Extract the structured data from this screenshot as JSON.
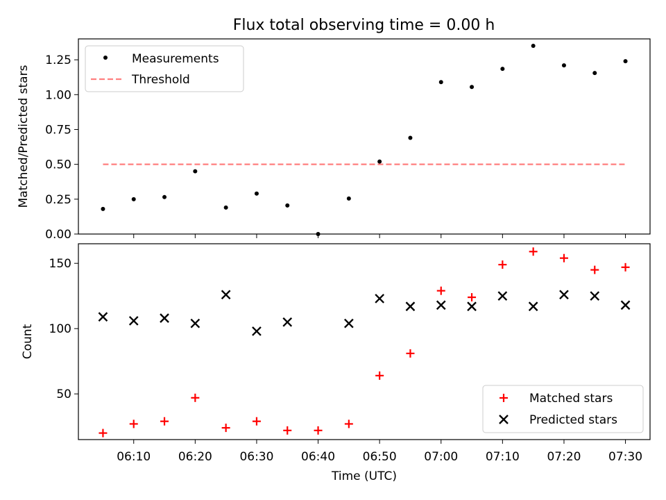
{
  "title": "Flux total observing time = 0.00 h",
  "chart_data": [
    {
      "type": "scatter",
      "ylabel": "Matched/Predicted stars",
      "ylim": [
        0,
        1.4
      ],
      "yticks": [
        0.0,
        0.25,
        0.5,
        0.75,
        1.0,
        1.25
      ],
      "ytick_labels": [
        "0.00",
        "0.25",
        "0.50",
        "0.75",
        "1.00",
        "1.25"
      ],
      "legend_position": "top-left",
      "threshold": {
        "name": "Threshold",
        "value": 0.5,
        "color": "#ff7f7f"
      },
      "series": [
        {
          "name": "Measurements",
          "color": "#000000",
          "x": [
            "06:05",
            "06:10",
            "06:15",
            "06:20",
            "06:25",
            "06:30",
            "06:35",
            "06:40",
            "06:45",
            "06:50",
            "06:55",
            "07:00",
            "07:05",
            "07:10",
            "07:15",
            "07:20",
            "07:25",
            "07:30"
          ],
          "y": [
            0.18,
            0.25,
            0.265,
            0.45,
            0.19,
            0.29,
            0.205,
            0.0,
            0.255,
            0.52,
            0.69,
            1.09,
            1.055,
            1.185,
            1.35,
            1.21,
            1.155,
            1.24
          ]
        }
      ]
    },
    {
      "type": "scatter",
      "xlabel": "Time (UTC)",
      "ylabel": "Count",
      "ylim": [
        15,
        165
      ],
      "yticks": [
        50,
        100,
        150
      ],
      "ytick_labels": [
        "50",
        "100",
        "150"
      ],
      "legend_position": "bottom-right",
      "series": [
        {
          "name": "Matched stars",
          "marker": "+",
          "color": "#ff0000",
          "x": [
            "06:05",
            "06:10",
            "06:15",
            "06:20",
            "06:25",
            "06:30",
            "06:35",
            "06:40",
            "06:45",
            "06:50",
            "06:55",
            "07:00",
            "07:05",
            "07:10",
            "07:15",
            "07:20",
            "07:25",
            "07:30"
          ],
          "y": [
            20,
            27,
            29,
            47,
            24,
            29,
            22,
            22,
            27,
            64,
            81,
            129,
            124,
            149,
            159,
            154,
            145,
            147
          ]
        },
        {
          "name": "Predicted stars",
          "marker": "x",
          "color": "#000000",
          "x": [
            "06:05",
            "06:10",
            "06:15",
            "06:20",
            "06:25",
            "06:30",
            "06:35",
            "06:40",
            "06:45",
            "06:50",
            "06:55",
            "07:00",
            "07:05",
            "07:10",
            "07:15",
            "07:20",
            "07:25",
            "07:30"
          ],
          "y": [
            109,
            106,
            108,
            104,
            126,
            98,
            105,
            null,
            104,
            123,
            117,
            118,
            117,
            125,
            117,
            126,
            125,
            118
          ]
        }
      ]
    }
  ],
  "xaxis": {
    "ticks": [
      "06:10",
      "06:20",
      "06:30",
      "06:40",
      "06:50",
      "07:00",
      "07:10",
      "07:20",
      "07:30"
    ],
    "xlim": [
      "06:01",
      "07:34"
    ]
  }
}
